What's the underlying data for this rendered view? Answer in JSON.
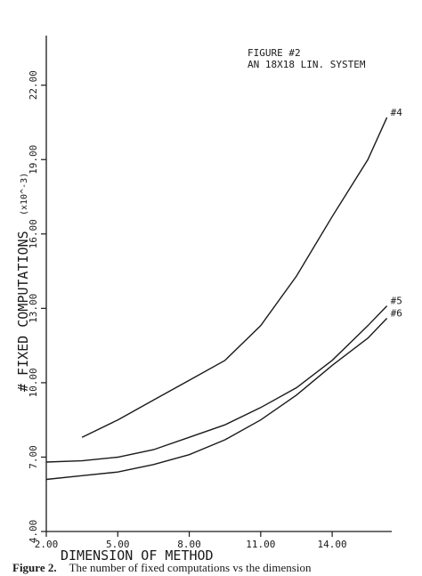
{
  "chart_data": {
    "type": "line",
    "title": "FIGURE #2",
    "subtitle": "AN 18X18 LIN. SYSTEM",
    "xlabel": "DIMENSION OF METHOD",
    "ylabel": "# FIXED COMPUTATIONS",
    "yunit": "(x10^-3)",
    "xlim": [
      2.0,
      16.5
    ],
    "ylim": [
      4.0,
      24.0
    ],
    "xticks": [
      "2.00",
      "5.00",
      "8.00",
      "11.00",
      "14.00"
    ],
    "yticks": [
      "4.00",
      "7.00",
      "10.00",
      "13.00",
      "16.00",
      "19.00",
      "22.00"
    ],
    "grid": false,
    "legend": "none",
    "series": [
      {
        "name": "#4",
        "x": [
          3.5,
          5.0,
          6.5,
          8.0,
          9.5,
          11.0,
          12.5,
          14.0,
          15.5,
          16.3
        ],
        "y": [
          7.8,
          8.5,
          9.3,
          10.1,
          10.9,
          12.3,
          14.3,
          16.7,
          19.0,
          20.7
        ]
      },
      {
        "name": "#5",
        "x": [
          2.0,
          3.5,
          5.0,
          6.5,
          8.0,
          9.5,
          11.0,
          12.5,
          14.0,
          15.5,
          16.3
        ],
        "y": [
          6.8,
          6.85,
          7.0,
          7.3,
          7.8,
          8.3,
          9.0,
          9.8,
          10.9,
          12.3,
          13.1
        ]
      },
      {
        "name": "#6",
        "x": [
          2.0,
          3.5,
          5.0,
          6.5,
          8.0,
          9.5,
          11.0,
          12.5,
          14.0,
          15.5,
          16.3
        ],
        "y": [
          6.1,
          6.25,
          6.4,
          6.7,
          7.1,
          7.7,
          8.5,
          9.5,
          10.7,
          11.8,
          12.6
        ]
      }
    ]
  },
  "caption": {
    "label": "Figure 2.",
    "text": "The number of fixed computations vs the dimension"
  }
}
